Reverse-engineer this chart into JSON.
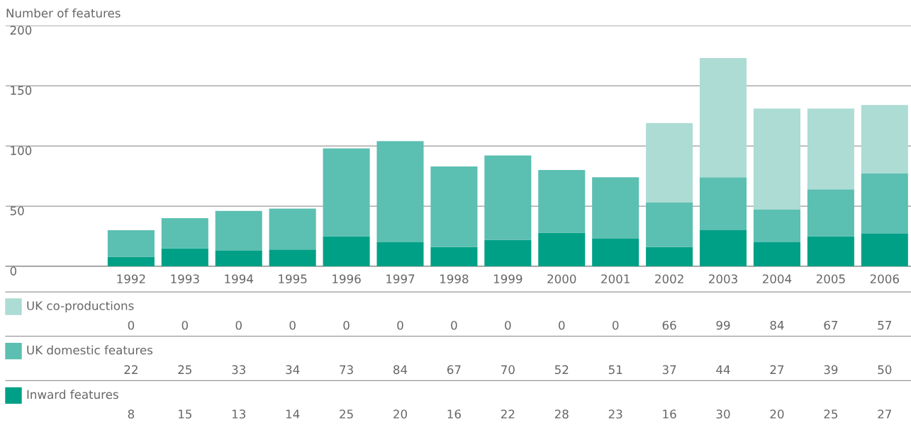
{
  "chart_data": {
    "type": "bar",
    "stacked": true,
    "ylabel": "Number of features",
    "categories": [
      "1992",
      "1993",
      "1994",
      "1995",
      "1996",
      "1997",
      "1998",
      "1999",
      "2000",
      "2001",
      "2002",
      "2003",
      "2004",
      "2005",
      "2006"
    ],
    "series": [
      {
        "name": "Inward features",
        "color": "#00a087",
        "values": [
          8,
          15,
          13,
          14,
          25,
          20,
          16,
          22,
          28,
          23,
          16,
          30,
          20,
          25,
          27
        ]
      },
      {
        "name": "UK domestic features",
        "color": "#5bbfb1",
        "values": [
          22,
          25,
          33,
          34,
          73,
          84,
          67,
          70,
          52,
          51,
          37,
          44,
          27,
          39,
          50
        ]
      },
      {
        "name": "UK co-productions",
        "color": "#acdcd4",
        "values": [
          0,
          0,
          0,
          0,
          0,
          0,
          0,
          0,
          0,
          0,
          66,
          99,
          84,
          67,
          57
        ]
      }
    ],
    "ylim": [
      0,
      200
    ],
    "yticks": [
      0,
      50,
      100,
      150,
      200
    ],
    "grid": "y",
    "legend": "bottom",
    "data_labels": true
  }
}
